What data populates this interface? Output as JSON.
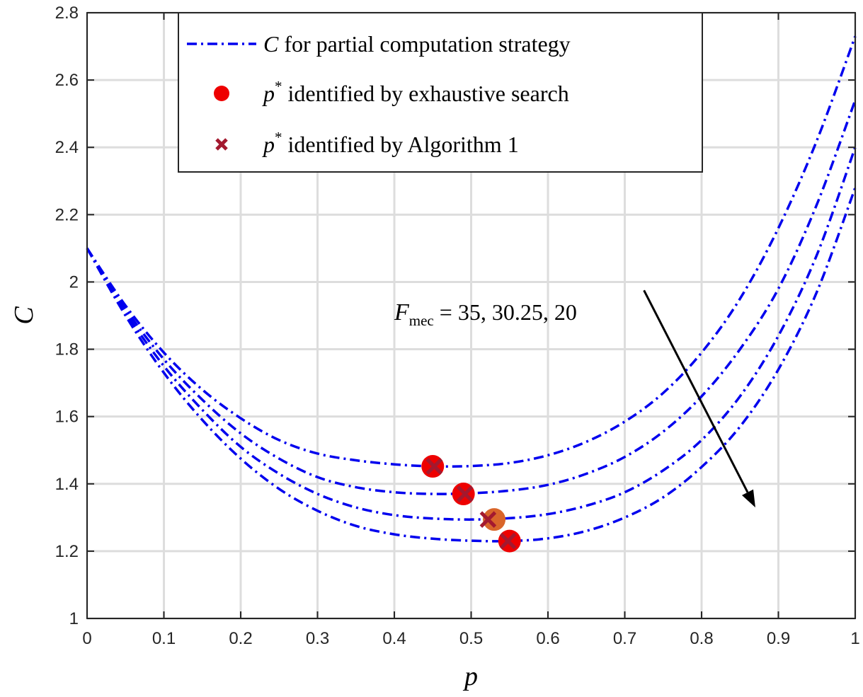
{
  "chart_data": {
    "type": "line",
    "xlabel": "p",
    "ylabel": "C",
    "xlim": [
      0,
      1
    ],
    "ylim": [
      1,
      2.8
    ],
    "xticks": [
      0,
      0.1,
      0.2,
      0.3,
      0.4,
      0.5,
      0.6,
      0.7,
      0.8,
      0.9,
      1
    ],
    "xtick_labels": [
      "0",
      "0.1",
      "0.2",
      "0.3",
      "0.4",
      "0.5",
      "0.6",
      "0.7",
      "0.8",
      "0.9",
      "1"
    ],
    "yticks": [
      1,
      1.2,
      1.4,
      1.6,
      1.8,
      2,
      2.2,
      2.4,
      2.6,
      2.8
    ],
    "ytick_labels": [
      "1",
      "1.2",
      "1.4",
      "1.6",
      "1.8",
      "2",
      "2.2",
      "2.4",
      "2.6",
      "2.8"
    ],
    "grid": true,
    "legend_position": "top-center",
    "legend": [
      {
        "symbol": "line",
        "math": "C",
        "text": " for partial computation strategy"
      },
      {
        "symbol": "circle",
        "math": "p*",
        "text": " identified by exhaustive search"
      },
      {
        "symbol": "cross",
        "math": "p*",
        "text": " identified by Algorithm 1"
      }
    ],
    "annotation": {
      "prefix": "F",
      "subscript": "mec",
      "text": " = 35, 30.25, 20"
    },
    "series": [
      {
        "x": [
          0,
          0.05,
          0.1,
          0.15,
          0.2,
          0.25,
          0.3,
          0.35,
          0.4,
          0.45,
          0.5,
          0.55,
          0.6,
          0.65,
          0.7,
          0.75,
          0.8,
          0.85,
          0.9,
          0.95,
          1
        ],
        "values": [
          2.1,
          1.93,
          1.79,
          1.68,
          1.595,
          1.53,
          1.49,
          1.47,
          1.458,
          1.452,
          1.453,
          1.462,
          1.485,
          1.525,
          1.585,
          1.67,
          1.79,
          1.95,
          2.16,
          2.42,
          2.73
        ]
      },
      {
        "x": [
          0,
          0.05,
          0.1,
          0.15,
          0.2,
          0.25,
          0.3,
          0.35,
          0.4,
          0.45,
          0.5,
          0.55,
          0.6,
          0.65,
          0.7,
          0.75,
          0.8,
          0.85,
          0.9,
          0.95,
          1
        ],
        "values": [
          2.1,
          1.92,
          1.77,
          1.65,
          1.55,
          1.475,
          1.42,
          1.39,
          1.375,
          1.37,
          1.372,
          1.38,
          1.397,
          1.43,
          1.48,
          1.555,
          1.66,
          1.8,
          1.98,
          2.23,
          2.54
        ]
      },
      {
        "x": [
          0,
          0.05,
          0.1,
          0.15,
          0.2,
          0.25,
          0.3,
          0.35,
          0.4,
          0.45,
          0.5,
          0.55,
          0.6,
          0.65,
          0.7,
          0.75,
          0.8,
          0.85,
          0.9,
          0.95,
          1
        ],
        "values": [
          2.1,
          1.91,
          1.75,
          1.62,
          1.51,
          1.43,
          1.37,
          1.33,
          1.307,
          1.297,
          1.294,
          1.298,
          1.31,
          1.335,
          1.375,
          1.44,
          1.53,
          1.66,
          1.84,
          2.08,
          2.4
        ]
      },
      {
        "x": [
          0,
          0.05,
          0.1,
          0.15,
          0.2,
          0.25,
          0.3,
          0.35,
          0.4,
          0.45,
          0.5,
          0.55,
          0.6,
          0.65,
          0.7,
          0.75,
          0.8,
          0.85,
          0.9,
          0.95,
          1
        ],
        "values": [
          2.1,
          1.9,
          1.73,
          1.59,
          1.475,
          1.385,
          1.32,
          1.275,
          1.25,
          1.237,
          1.231,
          1.23,
          1.238,
          1.26,
          1.3,
          1.36,
          1.45,
          1.57,
          1.74,
          1.97,
          2.28
        ]
      }
    ],
    "exhaustive_points": [
      {
        "x": 0.45,
        "y": 1.452
      },
      {
        "x": 0.49,
        "y": 1.37
      },
      {
        "x": 0.53,
        "y": 1.294
      },
      {
        "x": 0.55,
        "y": 1.23
      }
    ],
    "algorithm_points": [
      {
        "x": 0.452,
        "y": 1.452
      },
      {
        "x": 0.492,
        "y": 1.37
      },
      {
        "x": 0.522,
        "y": 1.294
      },
      {
        "x": 0.548,
        "y": 1.23
      }
    ],
    "arrow": {
      "from": {
        "x": 0.725,
        "y": 1.975
      },
      "to": {
        "x": 0.87,
        "y": 1.33
      }
    },
    "colors": {
      "line": "#0000ee",
      "exhaustive": "#ee0000",
      "exhaustive_highlight": "#d9652a",
      "algorithm": "#a3192f",
      "grid": "#dddddd",
      "axis": "#262626"
    }
  }
}
